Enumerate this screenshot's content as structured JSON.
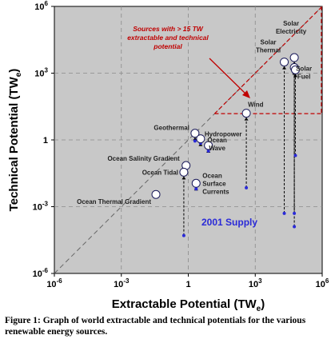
{
  "chart_data": {
    "type": "scatter",
    "xlabel": "Extractable Potential (TW",
    "xlabel_sub": "e",
    "xlabel_end": ")",
    "ylabel": "Technical Potential (TW",
    "ylabel_sub": "e",
    "ylabel_end": ")",
    "xscale": "log",
    "yscale": "log",
    "xlim_exp": [
      -6,
      6
    ],
    "ylim_exp": [
      -6,
      6
    ],
    "x_ticks": [
      {
        "exp": -6,
        "base": "10",
        "sup": "-6"
      },
      {
        "exp": -3,
        "base": "10",
        "sup": "-3"
      },
      {
        "exp": 0,
        "base": "1",
        "sup": ""
      },
      {
        "exp": 3,
        "base": "10",
        "sup": "3"
      },
      {
        "exp": 6,
        "base": "10",
        "sup": "6"
      }
    ],
    "y_ticks": [
      {
        "exp": 6,
        "base": "10",
        "sup": "6"
      },
      {
        "exp": 3,
        "base": "10",
        "sup": "3"
      },
      {
        "exp": 0,
        "base": "1",
        "sup": ""
      },
      {
        "exp": -3,
        "base": "10",
        "sup": "-3"
      },
      {
        "exp": -6,
        "base": "10",
        "sup": "-6"
      }
    ],
    "grid": true,
    "background": "#c8c8c8",
    "diagonal": "y = x",
    "sources": [
      {
        "name": "Solar Electricity",
        "lines": [
          "Solar",
          "Electricity"
        ],
        "x_exp": 4.75,
        "y_exp": 3.7,
        "supply_exp": -3.3
      },
      {
        "name": "Solar Thermal",
        "lines": [
          "Solar",
          "Thermal"
        ],
        "x_exp": 4.3,
        "y_exp": 3.5,
        "supply_exp": -3.3
      },
      {
        "name": "Solar Fuel",
        "lines": [
          "Solar",
          "Fuel"
        ],
        "x_exp": 4.75,
        "y_exp": 3.25,
        "supply_exp": -3.9
      },
      {
        "name": "Solar (other)",
        "lines": [],
        "x_exp": 4.8,
        "y_exp": 3.15,
        "supply_exp": -0.7
      },
      {
        "name": "Wind",
        "lines": [
          "Wind"
        ],
        "x_exp": 2.6,
        "y_exp": 1.2,
        "supply_exp": -2.15
      },
      {
        "name": "Geothermal",
        "lines": [
          "Geothermal"
        ],
        "x_exp": 0.3,
        "y_exp": 0.3,
        "supply_exp": -0.05
      },
      {
        "name": "Hydropower",
        "lines": [
          "Hydropower"
        ],
        "x_exp": 0.55,
        "y_exp": 0.05,
        "supply_exp": -0.15
      },
      {
        "name": "Ocean Wave",
        "lines": [
          "Ocean",
          "Wave"
        ],
        "x_exp": 0.9,
        "y_exp": -0.25,
        "supply_exp": -0.5
      },
      {
        "name": "Ocean Salinity Gradient",
        "lines": [
          "Ocean Salinity Gradient"
        ],
        "x_exp": -0.1,
        "y_exp": -1.15,
        "supply_exp": -1.15
      },
      {
        "name": "Ocean Tidal",
        "lines": [
          "Ocean Tidal"
        ],
        "x_exp": -0.2,
        "y_exp": -1.45,
        "supply_exp": -4.3
      },
      {
        "name": "Ocean Surface Currents",
        "lines": [
          "Ocean",
          "Surface",
          "Currents"
        ],
        "x_exp": 0.35,
        "y_exp": -1.95,
        "supply_exp": -2.2
      },
      {
        "name": "Ocean Thermal Gradient",
        "lines": [
          "Ocean Thermal Gradient"
        ],
        "x_exp": -1.45,
        "y_exp": -2.45,
        "supply_exp": null
      }
    ],
    "annotation": {
      "lines": [
        "Sources with > 15 TW",
        "extractable and technical",
        "potential"
      ],
      "color": "#c00000",
      "threshold_exp": 1.18
    },
    "supply_label": "2001 Supply",
    "supply_color": "#2a2ad8"
  },
  "caption": "Figure 1:  Graph of world extractable and technical potentials for the various renewable energy sources."
}
